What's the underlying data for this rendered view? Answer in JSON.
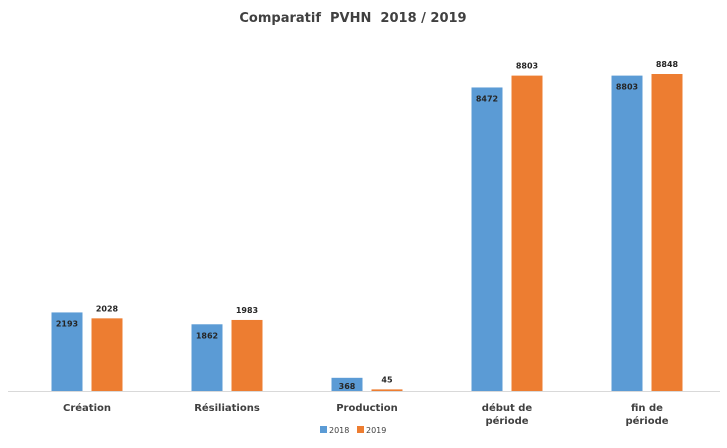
{
  "chart_data": {
    "type": "bar",
    "title": "Comparatif  PVHN  2018 / 2019",
    "categories": [
      [
        "Création"
      ],
      [
        "Résiliations"
      ],
      [
        "Production"
      ],
      [
        "début de",
        "période"
      ],
      [
        "fin de",
        "période"
      ]
    ],
    "series": [
      {
        "name": "2018",
        "color": "#5b9bd5",
        "values": [
          2193,
          1862,
          368,
          8472,
          8803
        ],
        "value_labels": [
          "2193",
          "1862",
          "368",
          "8472",
          "8803"
        ],
        "label_position": "inside-top"
      },
      {
        "name": "2019",
        "color": "#ed7d31",
        "values": [
          2028,
          1983,
          45,
          8803,
          8848
        ],
        "value_labels": [
          "2028",
          "1983",
          "45",
          "8803",
          "8848"
        ],
        "label_position": "outside-top"
      }
    ],
    "xlabel": "",
    "ylabel": "",
    "ylim": [
      0,
      9000
    ],
    "grid": false,
    "legend": "bottom-center"
  }
}
